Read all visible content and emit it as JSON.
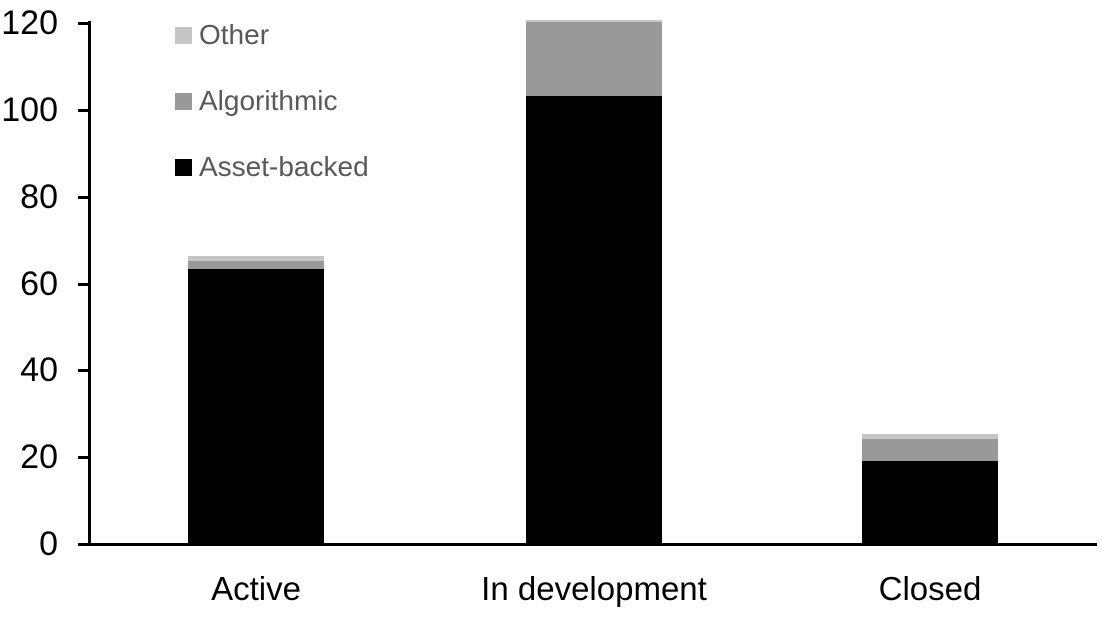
{
  "chart_data": {
    "type": "bar",
    "stacked": true,
    "title": "",
    "xlabel": "",
    "ylabel": "",
    "categories": [
      "Active",
      "In development",
      "Closed"
    ],
    "series": [
      {
        "name": "Asset-backed",
        "color": "#000000",
        "values": [
          63,
          103,
          19
        ]
      },
      {
        "name": "Algorithmic",
        "color": "#999999",
        "values": [
          2,
          17,
          5
        ]
      },
      {
        "name": "Other",
        "color": "#c6c6c6",
        "values": [
          1,
          0.5,
          1
        ]
      }
    ],
    "totals": [
      66,
      120.5,
      25
    ],
    "yticks": [
      0,
      20,
      40,
      60,
      80,
      100,
      120
    ],
    "ylim": [
      0,
      120
    ],
    "grid": false,
    "legend": {
      "position": "top-left",
      "order": [
        "Other",
        "Algorithmic",
        "Asset-backed"
      ],
      "text_color": "#595959"
    },
    "axis_color": "#000000",
    "background": "#ffffff"
  }
}
